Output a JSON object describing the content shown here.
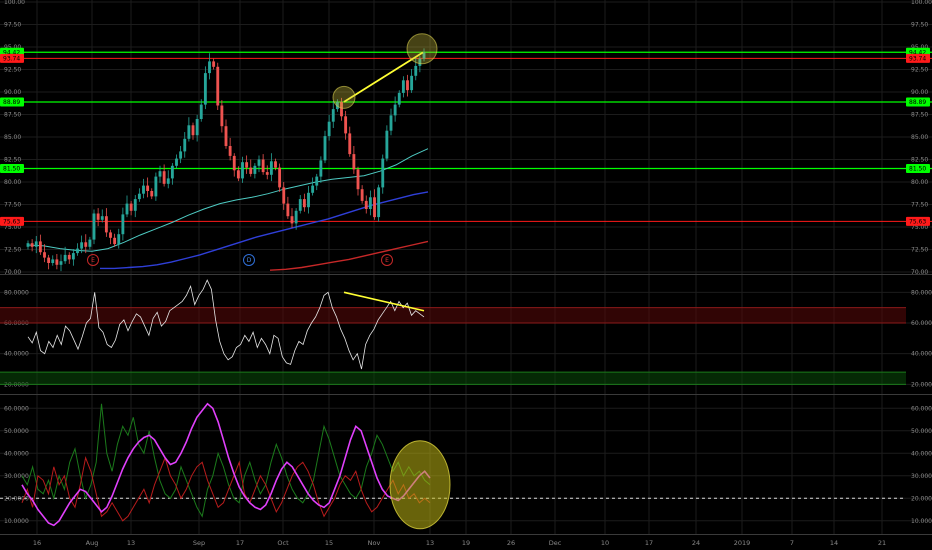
{
  "colors": {
    "background": "#000000",
    "grid": "#1c1c1c",
    "up_candle": "#26a69a",
    "down_candle": "#ef5350",
    "sma_fast": "#4ecbc3",
    "sma_mid": "#2f3fd8",
    "sma_slow": "#c62828",
    "support": "#00ff00",
    "resistance": "#ff1a1a",
    "trendline": "#ffff33",
    "rsi_line": "#e6e6e6",
    "rsi_upper_band": "#5a0a0a",
    "rsi_lower_band": "#0a4a0a",
    "adx_line": "#e040fb",
    "di_plus": "#1b7a1b",
    "di_minus": "#b71c1c"
  },
  "chart_data": [
    {
      "type": "candlestick",
      "name": "price",
      "ylim": [
        70,
        100
      ],
      "y_ticks": [
        "100.00",
        "97.50",
        "95.00",
        "92.50",
        "90.00",
        "87.50",
        "85.00",
        "82.50",
        "80.00",
        "77.50",
        "75.00",
        "72.50",
        "70.00"
      ],
      "x_labels": [
        "16",
        "Aug",
        "13",
        "Sep",
        "17",
        "Oct",
        "15",
        "Nov",
        "13",
        "19",
        "26",
        "Dec",
        "10",
        "17",
        "24",
        "2019",
        "7",
        "14",
        "21"
      ],
      "horizontal_levels": [
        {
          "value": 94.42,
          "label": "94.42",
          "color": "green"
        },
        {
          "value": 93.74,
          "label": "93.74",
          "color": "red"
        },
        {
          "value": 88.89,
          "label": "88.89",
          "color": "green"
        },
        {
          "value": 81.5,
          "label": "81.50",
          "color": "green"
        },
        {
          "value": 75.63,
          "label": "75.63",
          "color": "red"
        }
      ],
      "events": [
        {
          "label": "E",
          "date": "Jul 31"
        },
        {
          "label": "D",
          "date": "Sep 25"
        },
        {
          "label": "E",
          "date": "Oct 30"
        }
      ],
      "closes": [
        73.2,
        72.8,
        73.4,
        72.2,
        71.6,
        71.0,
        71.4,
        70.8,
        71.2,
        71.9,
        71.4,
        72.1,
        72.6,
        73.3,
        72.8,
        73.6,
        76.5,
        75.8,
        76.2,
        74.4,
        73.8,
        73.1,
        74.2,
        76.4,
        77.6,
        76.8,
        78.1,
        78.7,
        79.6,
        79.0,
        78.4,
        80.6,
        81.2,
        79.8,
        80.4,
        81.8,
        82.6,
        83.4,
        84.8,
        86.3,
        85.2,
        87.0,
        88.6,
        92.1,
        93.4,
        92.8,
        88.5,
        86.2,
        84.0,
        82.9,
        81.3,
        80.4,
        82.2,
        81.6,
        80.9,
        81.8,
        82.5,
        81.1,
        80.8,
        82.3,
        81.6,
        79.4,
        77.6,
        76.2,
        75.4,
        76.8,
        78.1,
        77.2,
        78.8,
        79.6,
        80.6,
        82.4,
        85.1,
        86.7,
        88.1,
        88.9,
        87.3,
        85.4,
        83.1,
        81.4,
        79.2,
        77.9,
        77.0,
        78.3,
        76.1,
        79.4,
        82.6,
        85.7,
        87.4,
        88.6,
        89.9,
        91.3,
        90.2,
        91.8,
        92.9,
        93.7,
        94.4
      ],
      "sma_fast": [
        73.0,
        72.9,
        72.6,
        72.4,
        72.3,
        72.6,
        73.3,
        74.1,
        74.8,
        75.5,
        76.3,
        77.0,
        77.6,
        78.0,
        78.3,
        78.7,
        79.2,
        79.6,
        80.0,
        80.3,
        80.5,
        80.7,
        81.2,
        81.9,
        82.9,
        83.7
      ],
      "sma_mid": [
        70.4,
        70.4,
        70.5,
        70.6,
        70.8,
        71.1,
        71.5,
        71.9,
        72.4,
        72.9,
        73.4,
        73.9,
        74.3,
        74.7,
        75.1,
        75.5,
        75.9,
        76.4,
        76.9,
        77.4,
        77.8,
        78.2,
        78.6,
        78.9
      ],
      "sma_slow": [
        70.2,
        70.3,
        70.5,
        70.8,
        71.1,
        71.4,
        71.8,
        72.2,
        72.6,
        73.0,
        73.4
      ]
    },
    {
      "type": "line",
      "name": "RSI",
      "ylim": [
        15,
        90
      ],
      "y_ticks": [
        "80.0000",
        "60.0000",
        "40.0000",
        "20.0000"
      ],
      "bands": [
        [
          60,
          70
        ],
        [
          20,
          28
        ]
      ],
      "values": [
        51,
        47,
        54,
        42,
        40,
        48,
        44,
        52,
        46,
        58,
        55,
        49,
        43,
        51,
        60,
        63,
        80,
        57,
        54,
        46,
        44,
        49,
        59,
        62,
        55,
        61,
        66,
        64,
        58,
        52,
        63,
        67,
        58,
        61,
        68,
        70,
        72,
        74,
        78,
        84,
        72,
        78,
        82,
        88,
        82,
        62,
        48,
        40,
        36,
        38,
        44,
        46,
        52,
        48,
        54,
        44,
        50,
        46,
        40,
        52,
        50,
        38,
        34,
        33,
        42,
        48,
        46,
        55,
        60,
        64,
        70,
        78,
        80,
        70,
        64,
        56,
        50,
        42,
        36,
        40,
        30,
        46,
        52,
        56,
        62,
        66,
        70,
        74,
        68,
        74,
        70,
        73,
        65,
        68,
        66,
        64
      ]
    },
    {
      "type": "line",
      "name": "DMI",
      "ylim": [
        5,
        65
      ],
      "y_ticks": [
        "60.0000",
        "50.0000",
        "40.0000",
        "30.0000",
        "20.0000",
        "10.0000"
      ],
      "reference_line": 20,
      "adx": [
        26,
        22,
        19,
        15,
        12,
        9,
        8,
        10,
        14,
        18,
        21,
        24,
        23,
        20,
        17,
        14,
        16,
        21,
        27,
        33,
        38,
        42,
        45,
        47,
        48,
        46,
        42,
        38,
        35,
        36,
        40,
        45,
        51,
        56,
        59,
        62,
        60,
        54,
        46,
        38,
        31,
        25,
        21,
        18,
        16,
        15,
        17,
        22,
        28,
        33,
        36,
        34,
        30,
        26,
        22,
        19,
        17,
        16,
        18,
        24,
        30,
        38,
        46,
        52,
        50,
        43,
        36,
        29,
        24,
        21,
        20,
        19,
        21,
        24,
        27,
        30,
        32,
        29
      ],
      "di_plus": [
        30,
        26,
        34,
        24,
        22,
        28,
        20,
        30,
        24,
        36,
        42,
        30,
        20,
        26,
        36,
        62,
        40,
        32,
        44,
        52,
        48,
        56,
        44,
        40,
        50,
        38,
        28,
        22,
        20,
        24,
        34,
        28,
        22,
        16,
        12,
        24,
        30,
        40,
        34,
        26,
        20,
        18,
        30,
        36,
        28,
        22,
        26,
        36,
        44,
        38,
        30,
        24,
        20,
        18,
        22,
        28,
        40,
        52,
        46,
        38,
        30,
        26,
        22,
        20,
        24,
        34,
        40,
        48,
        44,
        38,
        32,
        36,
        30,
        34,
        30,
        32,
        28,
        26
      ],
      "di_minus": [
        18,
        24,
        16,
        30,
        28,
        22,
        34,
        26,
        30,
        20,
        16,
        26,
        38,
        32,
        22,
        12,
        14,
        18,
        14,
        10,
        12,
        16,
        20,
        24,
        18,
        26,
        32,
        38,
        30,
        26,
        20,
        24,
        30,
        34,
        36,
        28,
        22,
        16,
        18,
        24,
        30,
        36,
        22,
        18,
        24,
        30,
        26,
        20,
        14,
        18,
        24,
        30,
        34,
        36,
        32,
        26,
        18,
        12,
        16,
        20,
        26,
        30,
        28,
        32,
        24,
        18,
        14,
        16,
        20,
        24,
        28,
        22,
        26,
        20,
        22,
        18,
        20,
        18
      ]
    }
  ]
}
